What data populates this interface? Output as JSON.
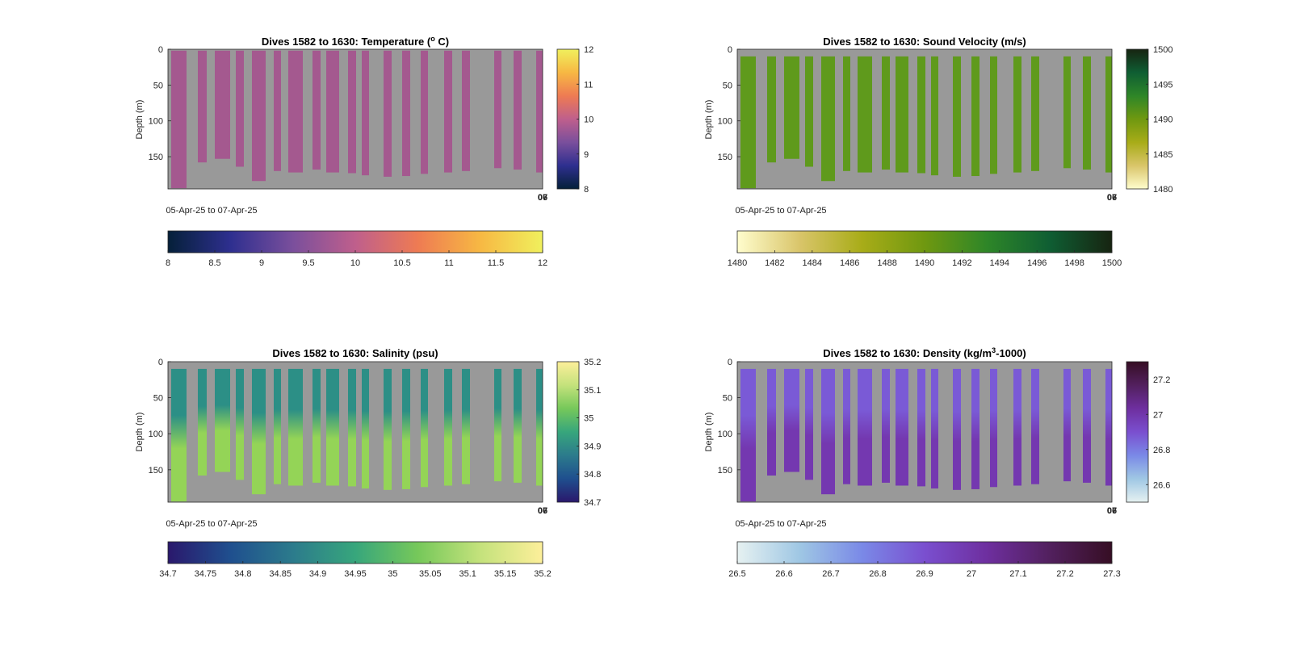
{
  "figure": {
    "background": "#ffffff",
    "plot_background": "#999999"
  },
  "chart_data": [
    {
      "id": "temperature",
      "type": "heatmap",
      "title": "Dives 1582 to 1630: Temperature (",
      "title_sup": "o",
      "title_after": " C)",
      "xlabel": "05-Apr-25 to 07-Apr-25",
      "ylabel": "Depth (m)",
      "yticks": [
        0,
        50,
        100,
        150
      ],
      "ylim": [
        0,
        195
      ],
      "xtick_labels": [
        "06",
        "07"
      ],
      "colormap": "thermal",
      "colors": [
        "#052039",
        "#2e2f8f",
        "#7a4f9c",
        "#bf5f8c",
        "#ee7b53",
        "#f7b843",
        "#f0f05d"
      ],
      "clim": [
        8,
        12
      ],
      "side_colorbar_ticks": [
        8,
        9,
        10,
        11,
        12
      ],
      "bottom_colorbar_ticks": [
        "8",
        "8.5",
        "9",
        "9.5",
        "10",
        "10.5",
        "11",
        "11.5",
        "12"
      ],
      "profile_color": "#a4598f",
      "profile_value": 9.8
    },
    {
      "id": "sound-velocity",
      "type": "heatmap",
      "title": "Dives 1582 to 1630: Sound Velocity (m/s)",
      "xlabel": "05-Apr-25 to 07-Apr-25",
      "ylabel": "Depth (m)",
      "yticks": [
        0,
        50,
        100,
        150
      ],
      "ylim": [
        0,
        195
      ],
      "xtick_labels": [
        "06",
        "07"
      ],
      "colormap": "speed",
      "colors": [
        "#fffdcd",
        "#d9c56a",
        "#a8ac18",
        "#6f9810",
        "#2e8628",
        "#0f5e33",
        "#172411"
      ],
      "clim": [
        1480,
        1500
      ],
      "side_colorbar_ticks": [
        1480,
        1485,
        1490,
        1495,
        1500
      ],
      "bottom_colorbar_ticks": [
        "1480",
        "1482",
        "1484",
        "1486",
        "1488",
        "1490",
        "1492",
        "1494",
        "1496",
        "1498",
        "1500"
      ],
      "profile_color": "#5f9a1c",
      "profile_value": 1490
    },
    {
      "id": "salinity",
      "type": "heatmap",
      "title": "Dives 1582 to 1630: Salinity (psu)",
      "xlabel": "05-Apr-25 to 07-Apr-25",
      "ylabel": "Depth (m)",
      "yticks": [
        0,
        50,
        100,
        150
      ],
      "ylim": [
        0,
        195
      ],
      "xtick_labels": [
        "06",
        "07"
      ],
      "colormap": "haline",
      "colors": [
        "#2a186c",
        "#1f4f8e",
        "#2c7b8c",
        "#37a67c",
        "#76c85a",
        "#c4e27c",
        "#fdef9a"
      ],
      "clim": [
        34.7,
        35.2
      ],
      "side_colorbar_ticks": [
        34.7,
        34.8,
        34.9,
        35,
        35.1,
        35.2
      ],
      "bottom_colorbar_ticks": [
        "34.7",
        "34.75",
        "34.8",
        "34.85",
        "34.9",
        "34.95",
        "35",
        "35.05",
        "35.1",
        "35.15",
        "35.2"
      ],
      "profile_color_surface": "#2c8f86",
      "profile_color_deep": "#94d457",
      "profile_value_surface": 34.97,
      "profile_value_deep": 35.12
    },
    {
      "id": "density",
      "type": "heatmap",
      "title": "Dives 1582 to 1630: Density (kg/m",
      "title_sup": "3",
      "title_after": "-1000)",
      "xlabel": "05-Apr-25 to 07-Apr-25",
      "ylabel": "Depth (m)",
      "yticks": [
        0,
        50,
        100,
        150
      ],
      "ylim": [
        0,
        195
      ],
      "xtick_labels": [
        "06",
        "07"
      ],
      "colormap": "dense",
      "colors": [
        "#e6f1f1",
        "#9fc7e4",
        "#7a89e7",
        "#7a4fcf",
        "#6e2f9f",
        "#52205e",
        "#360e24"
      ],
      "clim": [
        26.5,
        27.3
      ],
      "side_colorbar_ticks": [
        26.6,
        26.8,
        27,
        27.2
      ],
      "bottom_colorbar_ticks": [
        "26.5",
        "26.6",
        "26.7",
        "26.8",
        "26.9",
        "27",
        "27.1",
        "27.2",
        "27.3"
      ],
      "profile_color_surface": "#7a5ad6",
      "profile_color_deep": "#7438b0",
      "profile_value_surface": 26.95,
      "profile_value_deep": 27.05
    }
  ],
  "profiles": [
    {
      "bottom_depth": 194
    },
    {
      "bottom_depth": 158
    },
    {
      "bottom_depth": 153
    },
    {
      "bottom_depth": 164
    },
    {
      "bottom_depth": 184
    },
    {
      "bottom_depth": 170
    },
    {
      "bottom_depth": 172
    },
    {
      "bottom_depth": 168
    },
    {
      "bottom_depth": 172
    },
    {
      "bottom_depth": 173
    },
    {
      "bottom_depth": 176
    },
    {
      "bottom_depth": 178
    },
    {
      "bottom_depth": 177
    },
    {
      "bottom_depth": 174
    },
    {
      "bottom_depth": 172
    },
    {
      "bottom_depth": 170
    },
    {
      "bottom_depth": 166
    },
    {
      "bottom_depth": 168
    }
  ]
}
